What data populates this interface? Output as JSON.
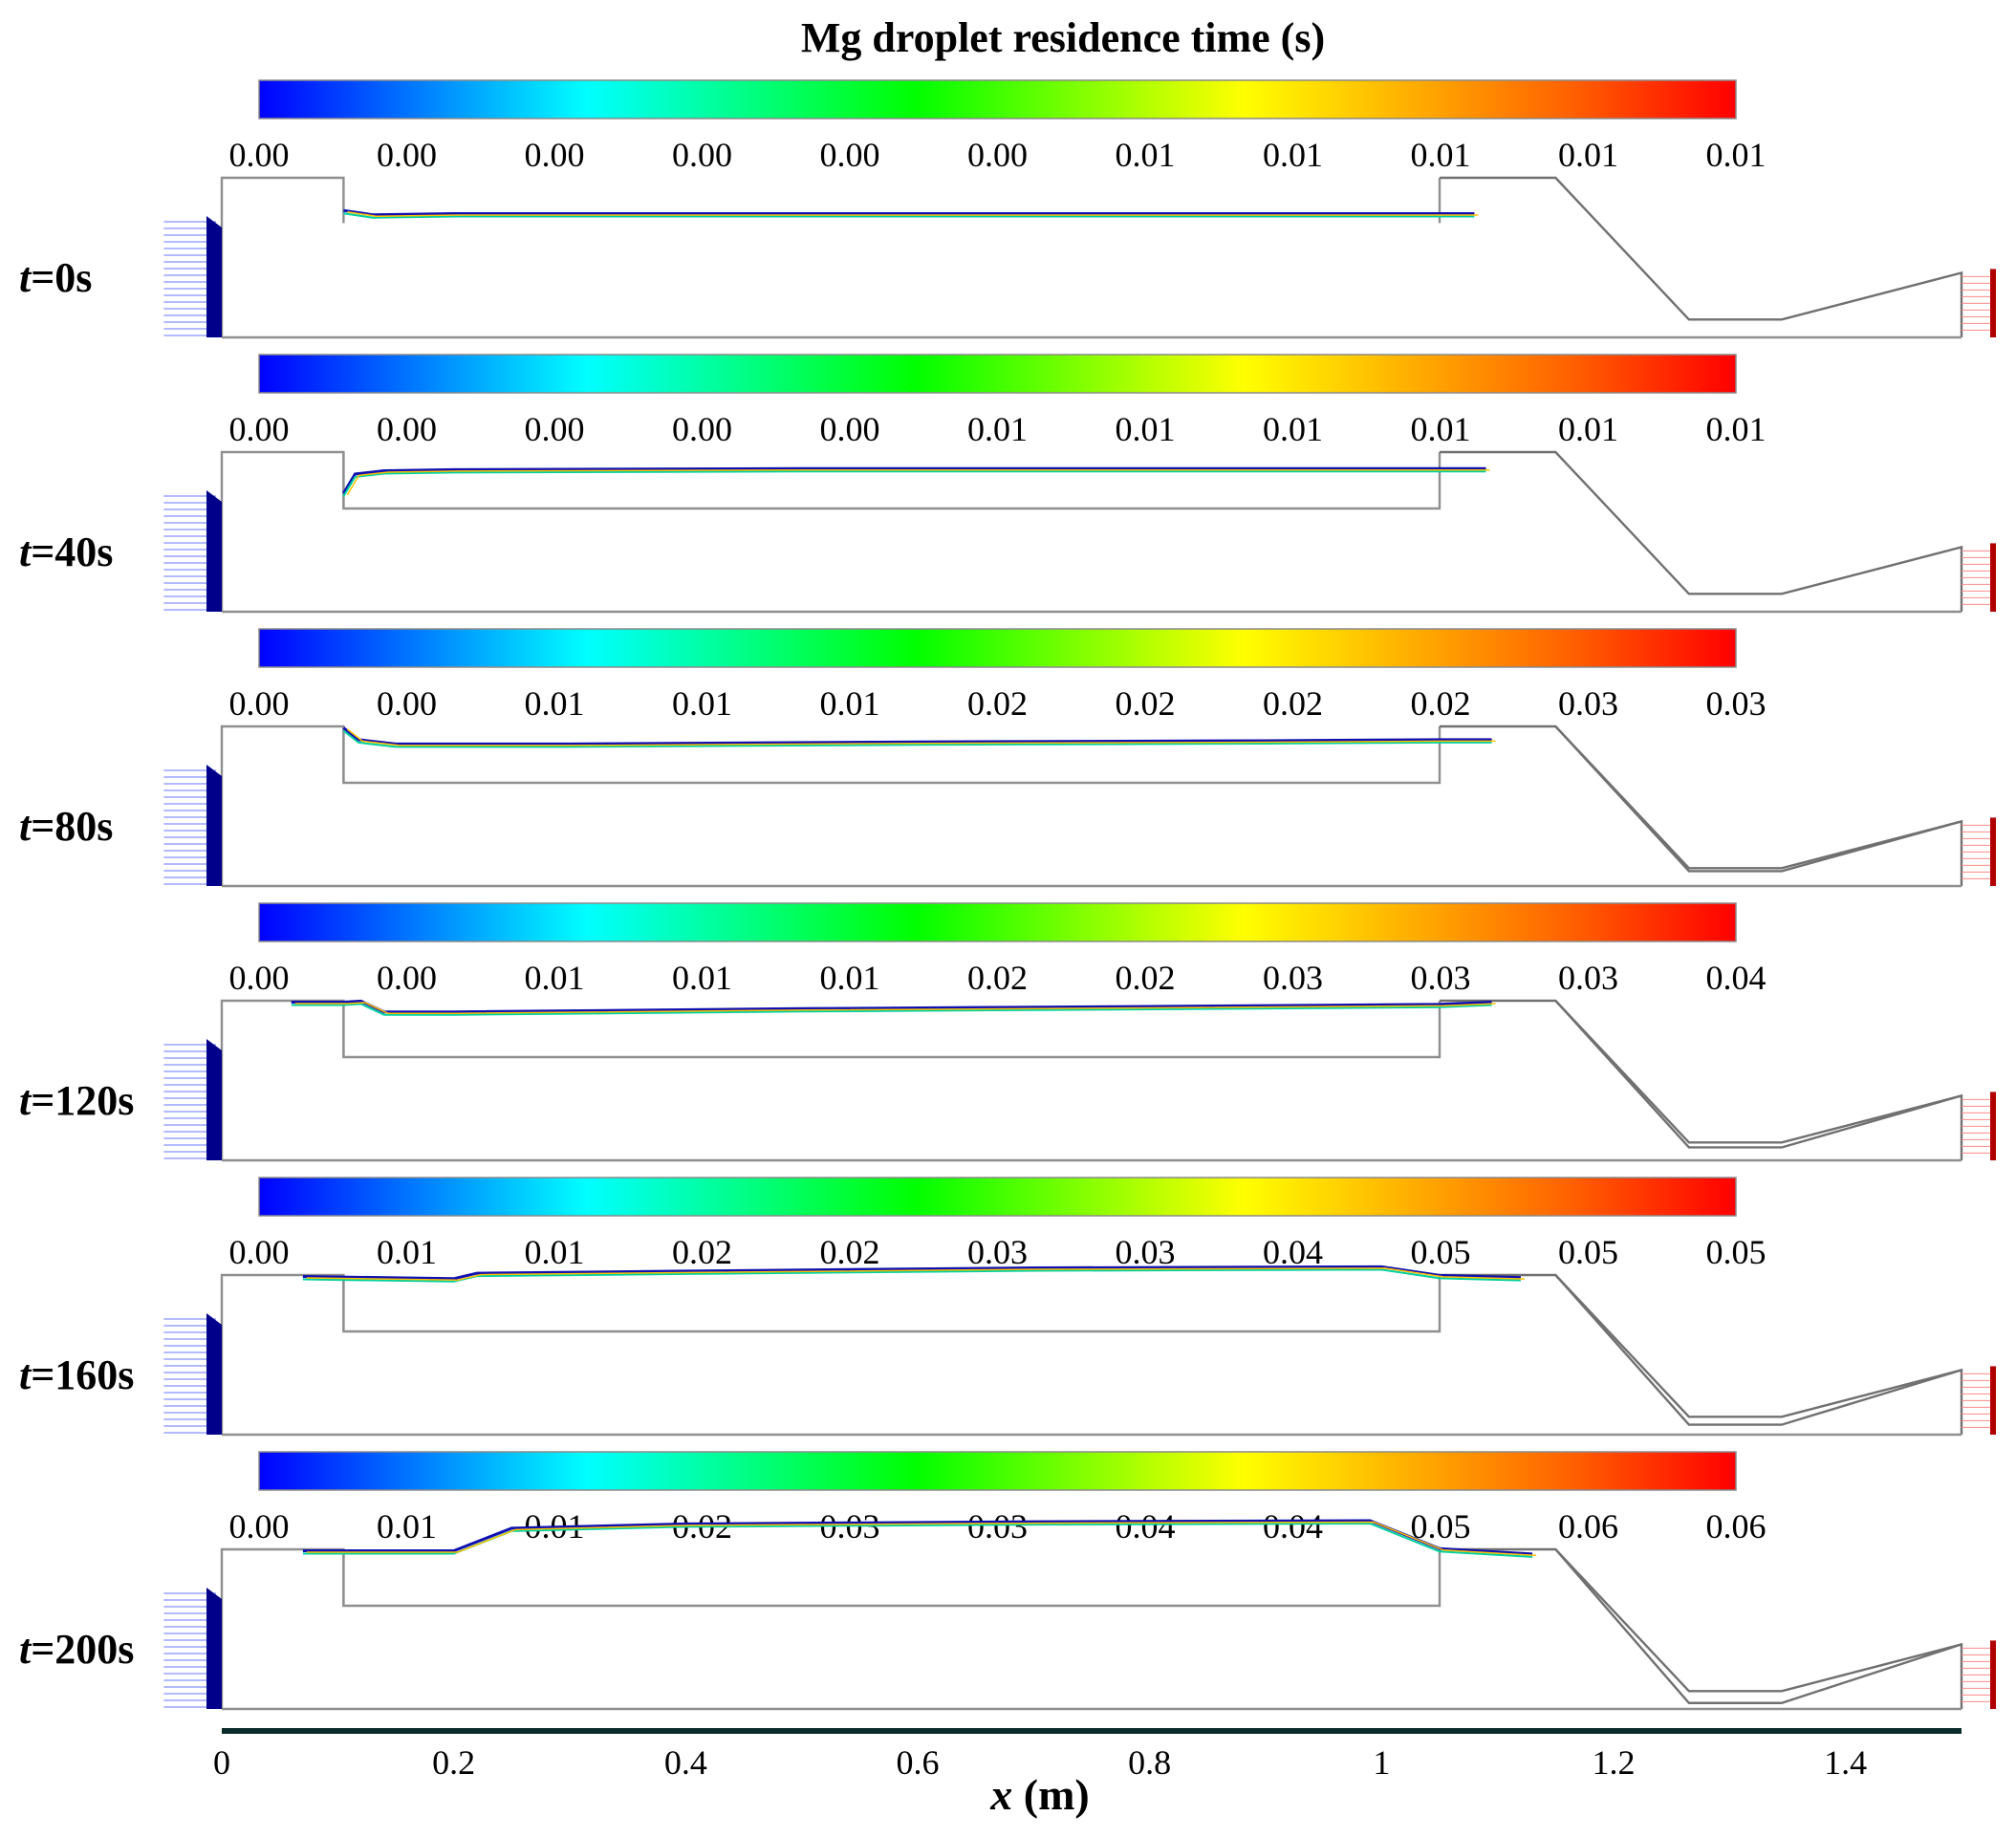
{
  "chart_data": {
    "type": "contour-panels",
    "title": "Mg droplet residence time (s)",
    "xlabel": "x (m)",
    "x_ticks": [
      "0",
      "0.2",
      "0.4",
      "0.6",
      "0.8",
      "1",
      "1.2",
      "1.4"
    ],
    "x_tick_values": [
      0,
      0.2,
      0.4,
      0.6,
      0.8,
      1.0,
      1.2,
      1.4
    ],
    "xlim": [
      0,
      1.5
    ],
    "colormap": [
      "#0000ff",
      "#0080ff",
      "#00ffff",
      "#00ff80",
      "#00ff00",
      "#80ff00",
      "#ffff00",
      "#ffb000",
      "#ff6000",
      "#ff0000"
    ],
    "panels": [
      {
        "label_t": "t",
        "label_rest": "=0s",
        "colorbar_ticks": [
          "0.00",
          "0.00",
          "0.00",
          "0.00",
          "0.00",
          "0.00",
          "0.01",
          "0.01",
          "0.01",
          "0.01",
          "0.01"
        ],
        "interface": [
          [
            0.105,
            0.118
          ],
          [
            0.13,
            0.114
          ],
          [
            0.2,
            0.115
          ],
          [
            0.5,
            0.115
          ],
          [
            0.8,
            0.115
          ],
          [
            1.05,
            0.115
          ],
          [
            1.08,
            0.115
          ]
        ],
        "interface_end": 1.08,
        "outlet_gap": 0.0
      },
      {
        "label_t": "t",
        "label_rest": "=40s",
        "colorbar_ticks": [
          "0.00",
          "0.00",
          "0.00",
          "0.00",
          "0.00",
          "0.01",
          "0.01",
          "0.01",
          "0.01",
          "0.01",
          "0.01"
        ],
        "interface": [
          [
            0.105,
            0.11
          ],
          [
            0.115,
            0.128
          ],
          [
            0.14,
            0.131
          ],
          [
            0.2,
            0.132
          ],
          [
            0.5,
            0.133
          ],
          [
            0.8,
            0.133
          ],
          [
            1.05,
            0.133
          ],
          [
            1.09,
            0.133
          ]
        ],
        "interface_end": 1.09,
        "outlet_gap": 0.0
      },
      {
        "label_t": "t",
        "label_rest": "=80s",
        "colorbar_ticks": [
          "0.00",
          "0.00",
          "0.01",
          "0.01",
          "0.01",
          "0.02",
          "0.02",
          "0.02",
          "0.02",
          "0.03",
          "0.03"
        ],
        "interface": [
          [
            0.105,
            0.147
          ],
          [
            0.118,
            0.136
          ],
          [
            0.15,
            0.132
          ],
          [
            0.3,
            0.132
          ],
          [
            0.6,
            0.134
          ],
          [
            0.9,
            0.135
          ],
          [
            1.05,
            0.136
          ],
          [
            1.095,
            0.136
          ]
        ],
        "interface_end": 1.095,
        "outlet_gap": 0.003
      },
      {
        "label_t": "t",
        "label_rest": "=120s",
        "colorbar_ticks": [
          "0.00",
          "0.00",
          "0.01",
          "0.01",
          "0.01",
          "0.02",
          "0.02",
          "0.03",
          "0.03",
          "0.03",
          "0.04"
        ],
        "interface": [
          [
            0.06,
            0.147
          ],
          [
            0.105,
            0.147
          ],
          [
            0.12,
            0.148
          ],
          [
            0.14,
            0.138
          ],
          [
            0.2,
            0.138
          ],
          [
            0.5,
            0.141
          ],
          [
            0.8,
            0.143
          ],
          [
            1.05,
            0.145
          ],
          [
            1.095,
            0.147
          ]
        ],
        "interface_end": 1.095,
        "outlet_gap": 0.005
      },
      {
        "label_t": "t",
        "label_rest": "=160s",
        "colorbar_ticks": [
          "0.00",
          "0.01",
          "0.01",
          "0.02",
          "0.02",
          "0.03",
          "0.03",
          "0.04",
          "0.05",
          "0.05",
          "0.05"
        ],
        "interface": [
          [
            0.07,
            0.147
          ],
          [
            0.2,
            0.145
          ],
          [
            0.22,
            0.15
          ],
          [
            0.4,
            0.152
          ],
          [
            0.7,
            0.155
          ],
          [
            1.0,
            0.156
          ],
          [
            1.05,
            0.148
          ],
          [
            1.12,
            0.146
          ]
        ],
        "interface_end": 1.12,
        "outlet_gap": 0.008
      },
      {
        "label_t": "t",
        "label_rest": "=200s",
        "colorbar_ticks": [
          "0.00",
          "0.01",
          "0.01",
          "0.02",
          "0.03",
          "0.03",
          "0.04",
          "0.04",
          "0.05",
          "0.06",
          "0.06"
        ],
        "interface": [
          [
            0.07,
            0.147
          ],
          [
            0.2,
            0.147
          ],
          [
            0.25,
            0.168
          ],
          [
            0.4,
            0.172
          ],
          [
            0.7,
            0.174
          ],
          [
            0.99,
            0.175
          ],
          [
            1.05,
            0.149
          ],
          [
            1.13,
            0.144
          ]
        ],
        "interface_end": 1.13,
        "outlet_gap": 0.012
      }
    ]
  }
}
